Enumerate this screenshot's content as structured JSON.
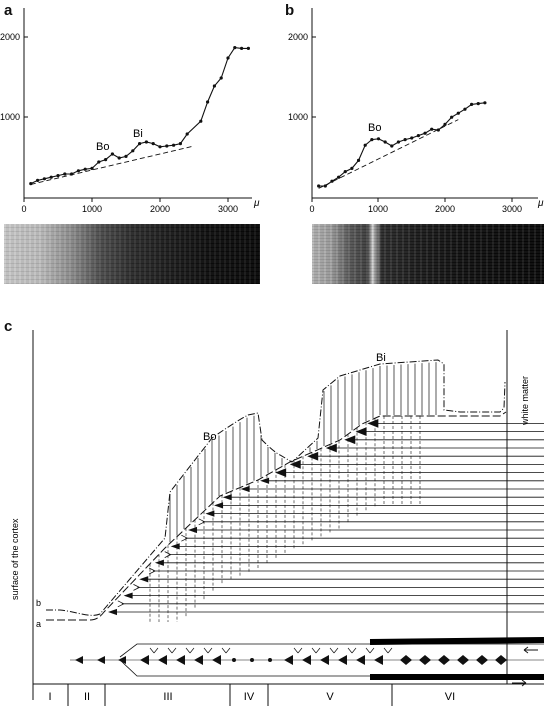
{
  "panels": {
    "a": {
      "letter": "a",
      "y_ticks": [
        "2000",
        "1000"
      ],
      "x_ticks": [
        "0",
        "1000",
        "2000",
        "3000"
      ],
      "x_unit": "μ",
      "peak_labels": [
        "Bo",
        "Bi"
      ]
    },
    "b": {
      "letter": "b",
      "y_ticks": [
        "2000",
        "1000"
      ],
      "x_ticks": [
        "0",
        "1000",
        "2000",
        "3000"
      ],
      "x_unit": "μ",
      "peak_labels": [
        "Bo"
      ]
    },
    "c": {
      "letter": "c",
      "labels": {
        "surface": "surface of the cortex",
        "white_matter": "white matter",
        "bo": "Bo",
        "bi": "Bi",
        "line_a": "a",
        "line_b": "b"
      },
      "layers": [
        "I",
        "II",
        "III",
        "IV",
        "V",
        "VI"
      ]
    }
  },
  "chart_data": [
    {
      "type": "line",
      "panel": "a",
      "xlabel": "μ",
      "xlim": [
        0,
        3400
      ],
      "ylim": [
        0,
        2200
      ],
      "series": [
        {
          "x": [
            100,
            200,
            300,
            400,
            500,
            600,
            700,
            800,
            900,
            1000,
            1100,
            1200,
            1300,
            1400,
            1500,
            1600,
            1700,
            1800,
            1900,
            2000,
            2100,
            2200,
            2300,
            2400,
            2600,
            2700,
            2800,
            2900,
            3000,
            3100,
            3200,
            3300
          ],
          "y": [
            180,
            220,
            240,
            260,
            280,
            300,
            300,
            340,
            360,
            370,
            450,
            480,
            550,
            500,
            520,
            590,
            680,
            700,
            680,
            640,
            650,
            660,
            680,
            800,
            960,
            1200,
            1400,
            1500,
            1750,
            1880,
            1870,
            1870
          ]
        }
      ],
      "baseline": {
        "x": [
          100,
          2500
        ],
        "y": [
          170,
          650
        ]
      },
      "annotations": [
        {
          "text": "Bo",
          "x": 1250,
          "y": 620
        },
        {
          "text": "Bi",
          "x": 1750,
          "y": 760
        }
      ]
    },
    {
      "type": "line",
      "panel": "b",
      "xlabel": "μ",
      "xlim": [
        0,
        3400
      ],
      "ylim": [
        0,
        2200
      ],
      "series": [
        {
          "x": [
            100,
            200,
            300,
            400,
            500,
            600,
            700,
            800,
            900,
            1000,
            1100,
            1200,
            1300,
            1400,
            1500,
            1600,
            1700,
            1800,
            1900,
            2000,
            2100,
            2200,
            2300,
            2400,
            2500,
            2600
          ],
          "y": [
            150,
            150,
            210,
            260,
            330,
            370,
            470,
            660,
            730,
            740,
            700,
            650,
            700,
            730,
            750,
            780,
            810,
            860,
            850,
            920,
            1010,
            1060,
            1110,
            1170,
            1180,
            1190
          ]
        }
      ],
      "baseline": {
        "x": [
          100,
          2200
        ],
        "y": [
          120,
          980
        ]
      },
      "annotations": [
        {
          "text": "Bo",
          "x": 950,
          "y": 820
        }
      ]
    }
  ]
}
